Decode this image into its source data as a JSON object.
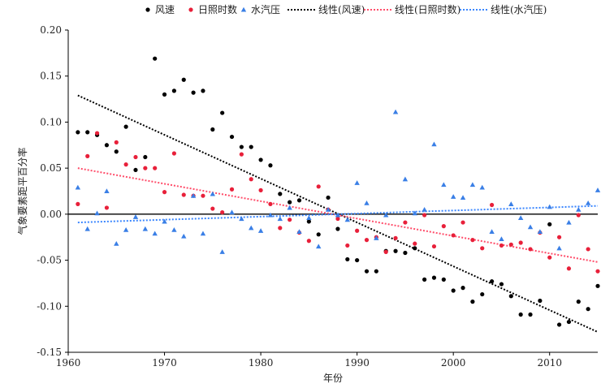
{
  "chart_data": {
    "type": "scatter",
    "xlabel": "年份",
    "ylabel": "气象要素距平百分率",
    "xlim": [
      1960,
      2015
    ],
    "ylim": [
      -0.15,
      0.2
    ],
    "x_ticks": [
      1960,
      1970,
      1980,
      1990,
      2000,
      2010
    ],
    "y_ticks": [
      -0.15,
      -0.1,
      -0.05,
      0.0,
      0.05,
      0.1,
      0.15,
      0.2
    ],
    "y_tick_labels": [
      "-0.15",
      "-0.10",
      "-0.05",
      "0.00",
      "0.05",
      "0.10",
      "0.15",
      "0.20"
    ],
    "legend_position": "top",
    "series": [
      {
        "name": "风速",
        "marker": "circle",
        "color": "#000000",
        "x": [
          1961,
          1962,
          1963,
          1964,
          1965,
          1966,
          1967,
          1968,
          1969,
          1970,
          1971,
          1972,
          1973,
          1974,
          1975,
          1976,
          1977,
          1978,
          1979,
          1980,
          1981,
          1982,
          1983,
          1984,
          1985,
          1986,
          1987,
          1988,
          1989,
          1990,
          1991,
          1992,
          1993,
          1994,
          1995,
          1996,
          1997,
          1998,
          1999,
          2000,
          2001,
          2002,
          2003,
          2004,
          2005,
          2006,
          2007,
          2008,
          2009,
          2010,
          2011,
          2012,
          2013,
          2014,
          2015
        ],
        "y": [
          0.089,
          0.089,
          0.086,
          0.075,
          0.068,
          0.095,
          0.048,
          0.062,
          0.169,
          0.13,
          0.134,
          0.146,
          0.132,
          0.134,
          0.092,
          0.11,
          0.084,
          0.073,
          0.073,
          0.059,
          0.053,
          0.022,
          0.013,
          0.015,
          -0.008,
          -0.022,
          0.018,
          -0.016,
          -0.049,
          -0.05,
          -0.062,
          -0.062,
          -0.04,
          -0.04,
          -0.042,
          -0.037,
          -0.071,
          -0.069,
          -0.071,
          -0.083,
          -0.08,
          -0.095,
          -0.087,
          -0.073,
          -0.076,
          -0.089,
          -0.109,
          -0.109,
          -0.094,
          -0.011,
          -0.12,
          -0.117,
          -0.095,
          -0.103,
          -0.078
        ]
      },
      {
        "name": "日照时数",
        "marker": "circle",
        "color": "#e8203a",
        "x": [
          1961,
          1962,
          1963,
          1964,
          1965,
          1966,
          1967,
          1968,
          1969,
          1970,
          1971,
          1972,
          1973,
          1974,
          1975,
          1976,
          1977,
          1978,
          1979,
          1980,
          1981,
          1982,
          1983,
          1984,
          1985,
          1986,
          1987,
          1988,
          1989,
          1990,
          1991,
          1992,
          1993,
          1994,
          1995,
          1996,
          1997,
          1998,
          1999,
          2000,
          2001,
          2002,
          2003,
          2004,
          2005,
          2006,
          2007,
          2008,
          2009,
          2010,
          2011,
          2012,
          2013,
          2014,
          2015
        ],
        "y": [
          0.011,
          0.063,
          0.088,
          0.007,
          0.078,
          0.054,
          0.062,
          0.05,
          0.05,
          0.024,
          0.066,
          0.021,
          0.02,
          0.02,
          0.006,
          0.002,
          0.027,
          0.065,
          0.038,
          0.026,
          0.011,
          -0.015,
          -0.006,
          -0.02,
          -0.029,
          0.03,
          0.005,
          -0.005,
          -0.034,
          -0.018,
          -0.028,
          -0.025,
          -0.041,
          -0.026,
          -0.009,
          -0.032,
          -0.001,
          -0.035,
          -0.013,
          -0.023,
          -0.009,
          -0.028,
          -0.037,
          0.01,
          -0.034,
          -0.033,
          -0.031,
          -0.038,
          -0.02,
          -0.047,
          -0.025,
          -0.059,
          -0.001,
          -0.038,
          -0.062
        ]
      },
      {
        "name": "水汽压",
        "marker": "triangle",
        "color": "#3a7fe6",
        "x": [
          1961,
          1962,
          1963,
          1964,
          1965,
          1966,
          1967,
          1968,
          1969,
          1970,
          1971,
          1972,
          1973,
          1974,
          1975,
          1976,
          1977,
          1978,
          1979,
          1980,
          1981,
          1982,
          1983,
          1984,
          1985,
          1986,
          1987,
          1988,
          1989,
          1990,
          1991,
          1992,
          1993,
          1994,
          1995,
          1996,
          1997,
          1998,
          1999,
          2000,
          2001,
          2002,
          2003,
          2004,
          2005,
          2006,
          2007,
          2008,
          2009,
          2010,
          2011,
          2012,
          2013,
          2014,
          2015
        ],
        "y": [
          0.029,
          -0.016,
          0.001,
          0.025,
          -0.032,
          -0.017,
          -0.003,
          -0.016,
          -0.021,
          -0.008,
          -0.017,
          -0.024,
          0.02,
          -0.021,
          0.022,
          -0.041,
          0.002,
          -0.005,
          -0.015,
          -0.018,
          -0.001,
          -0.005,
          0.007,
          -0.019,
          -0.004,
          -0.035,
          0.005,
          -0.001,
          -0.006,
          0.034,
          0.012,
          -0.026,
          -0.001,
          0.111,
          0.038,
          0.001,
          0.005,
          0.076,
          0.032,
          0.019,
          0.018,
          0.032,
          0.029,
          -0.019,
          -0.027,
          0.011,
          -0.004,
          -0.014,
          -0.019,
          0.008,
          -0.037,
          -0.009,
          0.005,
          0.012,
          0.026
        ]
      }
    ],
    "trend_lines": [
      {
        "name": "线性(风速)",
        "color": "#000000",
        "x": [
          1961,
          2015
        ],
        "y": [
          0.129,
          -0.128
        ]
      },
      {
        "name": "线性(日照时数)",
        "color": "#ff4d6a",
        "x": [
          1961,
          2015
        ],
        "y": [
          0.05,
          -0.052
        ]
      },
      {
        "name": "线性(水汽压)",
        "color": "#3a86ff",
        "x": [
          1961,
          2015
        ],
        "y": [
          -0.009,
          0.009
        ]
      }
    ]
  }
}
